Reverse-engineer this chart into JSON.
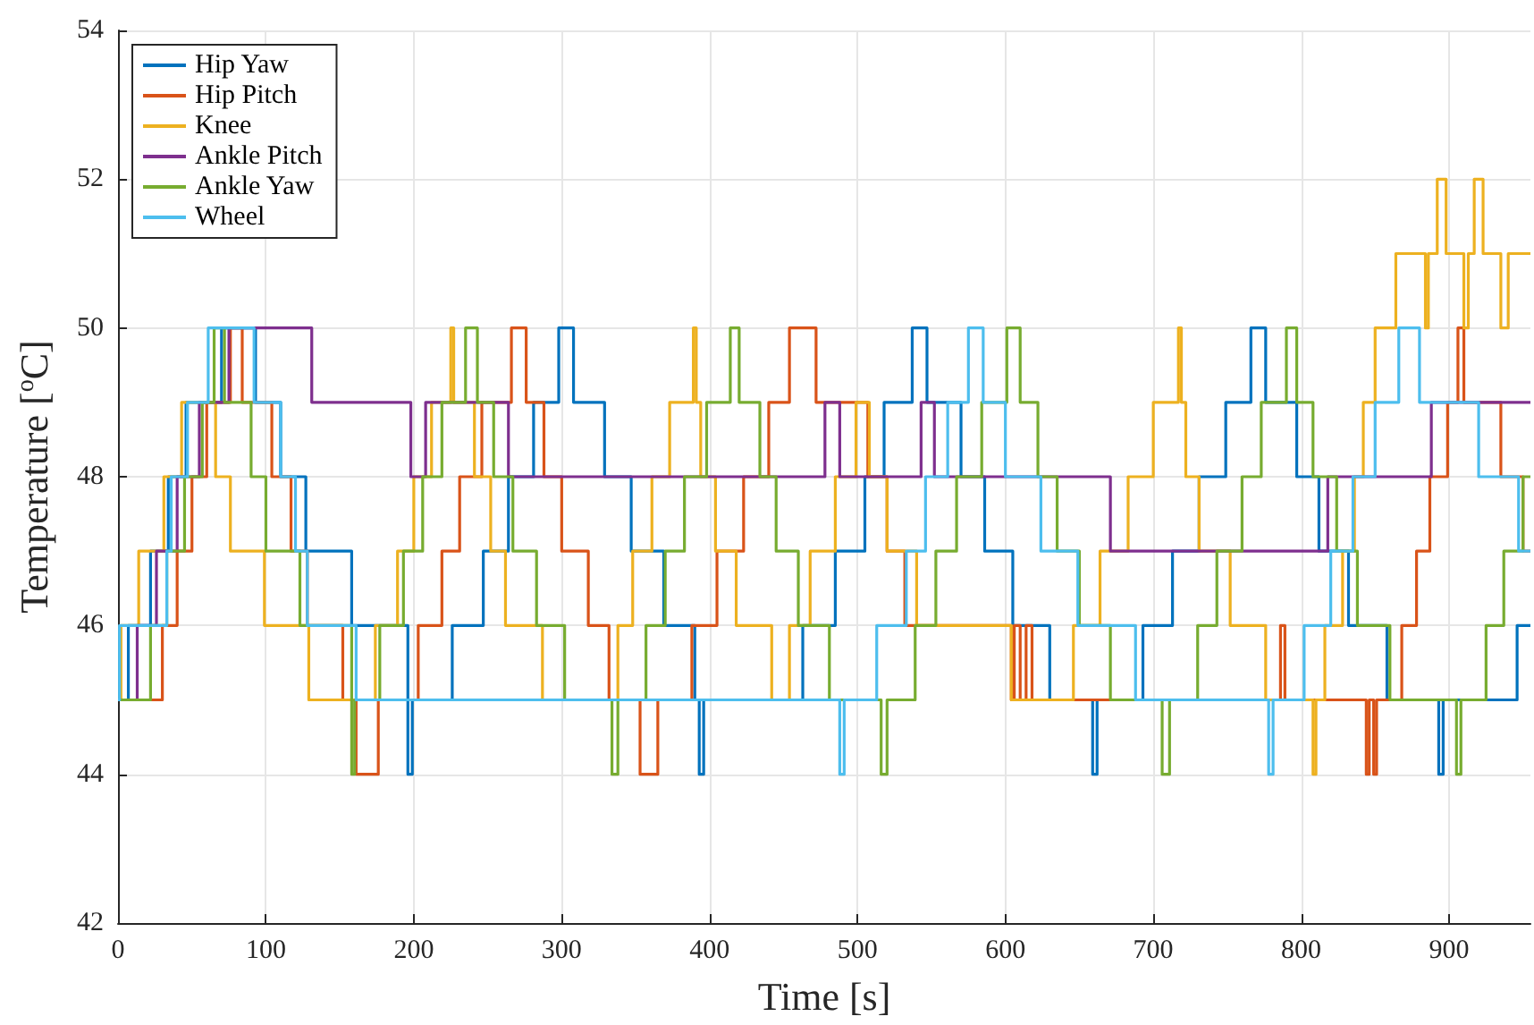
{
  "chart_data": {
    "type": "step",
    "xlabel": "Time [s]",
    "ylabel": "Temperature [$^{o}$C]",
    "xlim": [
      0,
      955
    ],
    "xticks": [
      0,
      100,
      200,
      300,
      400,
      500,
      600,
      700,
      800,
      900
    ],
    "ylim": [
      42,
      54
    ],
    "yticks": [
      42,
      44,
      46,
      48,
      50,
      52,
      54
    ],
    "grid": true,
    "legend": "top left",
    "series": [
      {
        "name": "Hip Yaw",
        "color": "#0072bd",
        "x": [
          0,
          7,
          22,
          34,
          46,
          70,
          93,
          110,
          127,
          158,
          196,
          199,
          226,
          247,
          264,
          281,
          298,
          308,
          329,
          347,
          369,
          390,
          393,
          396,
          463,
          485,
          505,
          518,
          537,
          547,
          570,
          586,
          605,
          630,
          659,
          662,
          693,
          713,
          731,
          749,
          766,
          776,
          797,
          812,
          832,
          858,
          893,
          896,
          946,
          955
        ],
        "values": [
          45,
          46,
          47,
          48,
          49,
          50,
          49,
          48,
          47,
          46,
          44,
          45,
          46,
          47,
          48,
          49,
          50,
          49,
          48,
          47,
          46,
          45,
          44,
          45,
          46,
          47,
          48,
          49,
          50,
          49,
          48,
          47,
          46,
          45,
          44,
          45,
          46,
          47,
          48,
          49,
          50,
          49,
          48,
          47,
          46,
          45,
          44,
          45,
          46,
          46
        ]
      },
      {
        "name": "Hip Pitch",
        "color": "#d95319",
        "x": [
          0,
          30,
          40,
          50,
          60,
          76,
          84,
          104,
          117,
          128,
          152,
          161,
          176,
          203,
          219,
          231,
          246,
          266,
          276,
          288,
          300,
          318,
          332,
          353,
          365,
          388,
          405,
          423,
          440,
          454,
          472,
          507,
          520,
          532,
          604,
          606,
          610,
          614,
          618,
          786,
          789,
          844,
          846,
          849,
          851,
          868,
          878,
          887,
          899,
          906,
          910,
          935,
          950,
          955
        ],
        "values": [
          45,
          46,
          47,
          48,
          49,
          50,
          49,
          48,
          47,
          46,
          45,
          44,
          45,
          46,
          47,
          48,
          49,
          50,
          49,
          48,
          47,
          46,
          45,
          44,
          45,
          46,
          47,
          48,
          49,
          50,
          49,
          48,
          47,
          46,
          45,
          46,
          45,
          46,
          45,
          46,
          45,
          44,
          45,
          44,
          45,
          46,
          47,
          48,
          49,
          50,
          49,
          48,
          47,
          47
        ]
      },
      {
        "name": "Knee",
        "color": "#edb120",
        "x": [
          0,
          2,
          14,
          31,
          43,
          61,
          65,
          66,
          76,
          99,
          129,
          174,
          189,
          200,
          212,
          225,
          227,
          241,
          252,
          262,
          287,
          338,
          348,
          361,
          373,
          389,
          391,
          394,
          404,
          418,
          442,
          454,
          468,
          485,
          499,
          508,
          520,
          540,
          604,
          646,
          664,
          683,
          700,
          717,
          719,
          722,
          731,
          752,
          776,
          808,
          810,
          816,
          828,
          836,
          842,
          850,
          864,
          884,
          886,
          892,
          898,
          910,
          913,
          917,
          923,
          935,
          940,
          955
        ],
        "values": [
          45,
          46,
          47,
          48,
          49,
          49,
          49,
          48,
          47,
          46,
          45,
          46,
          47,
          48,
          49,
          50,
          49,
          48,
          47,
          46,
          45,
          46,
          47,
          48,
          49,
          50,
          49,
          48,
          47,
          46,
          45,
          46,
          47,
          48,
          49,
          48,
          47,
          46,
          45,
          46,
          47,
          48,
          49,
          50,
          49,
          48,
          47,
          46,
          45,
          44,
          45,
          46,
          47,
          48,
          49,
          50,
          51,
          50,
          51,
          52,
          51,
          50,
          51,
          52,
          51,
          50,
          51,
          51
        ]
      },
      {
        "name": "Ankle Pitch",
        "color": "#7e2f8e",
        "x": [
          0,
          13,
          26,
          40,
          55,
          75,
          131,
          198,
          208,
          264,
          478,
          488,
          543,
          552,
          671,
          818,
          888,
          955
        ],
        "values": [
          45,
          46,
          47,
          48,
          49,
          50,
          49,
          48,
          49,
          48,
          49,
          48,
          49,
          48,
          47,
          48,
          49,
          49
        ]
      },
      {
        "name": "Ankle Yaw",
        "color": "#77ac30",
        "x": [
          0,
          22,
          33,
          45,
          57,
          65,
          72,
          90,
          100,
          123,
          158,
          160,
          177,
          193,
          206,
          219,
          235,
          243,
          254,
          267,
          283,
          302,
          334,
          338,
          357,
          370,
          383,
          398,
          414,
          420,
          434,
          445,
          460,
          481,
          516,
          520,
          539,
          553,
          567,
          584,
          601,
          610,
          622,
          635,
          650,
          671,
          706,
          711,
          730,
          743,
          760,
          773,
          790,
          797,
          808,
          824,
          838,
          860,
          905,
          908,
          925,
          937,
          950,
          955
        ],
        "values": [
          45,
          46,
          47,
          48,
          49,
          50,
          49,
          48,
          47,
          46,
          44,
          45,
          46,
          47,
          48,
          49,
          50,
          49,
          48,
          47,
          46,
          45,
          44,
          45,
          46,
          47,
          48,
          49,
          50,
          49,
          48,
          47,
          46,
          45,
          44,
          45,
          46,
          47,
          48,
          49,
          50,
          49,
          48,
          47,
          46,
          45,
          44,
          45,
          46,
          47,
          48,
          49,
          50,
          49,
          48,
          47,
          46,
          45,
          44,
          45,
          46,
          47,
          48,
          48
        ]
      },
      {
        "name": "Wheel",
        "color": "#4dbeee",
        "x": [
          0,
          1,
          33,
          36,
          47,
          61,
          92,
          110,
          120,
          128,
          161,
          488,
          491,
          513,
          533,
          546,
          561,
          575,
          585,
          600,
          624,
          649,
          688,
          778,
          781,
          802,
          820,
          835,
          850,
          866,
          880,
          920,
          947,
          955
        ],
        "values": [
          45,
          46,
          47,
          48,
          49,
          50,
          49,
          48,
          47,
          46,
          45,
          44,
          45,
          46,
          47,
          48,
          49,
          50,
          49,
          48,
          47,
          46,
          45,
          44,
          45,
          46,
          47,
          48,
          49,
          50,
          49,
          48,
          47,
          47
        ]
      }
    ]
  }
}
